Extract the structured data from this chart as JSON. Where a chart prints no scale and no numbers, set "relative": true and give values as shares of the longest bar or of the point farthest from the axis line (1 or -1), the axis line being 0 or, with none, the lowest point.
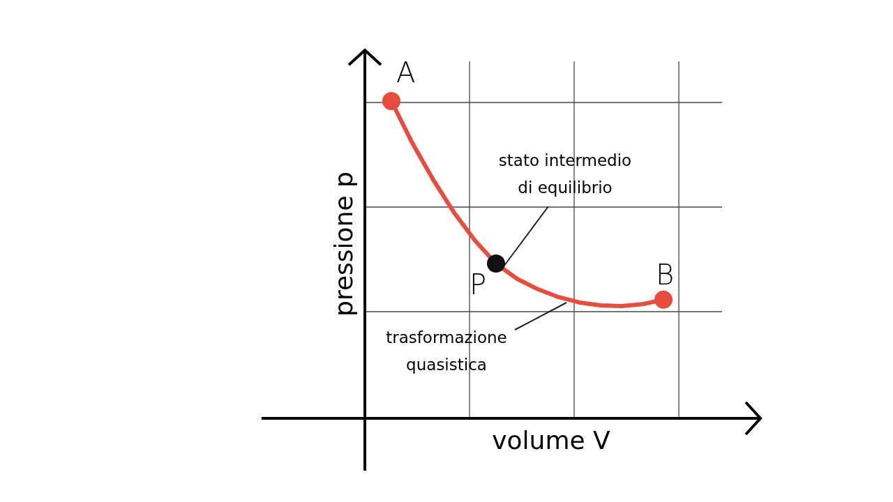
{
  "chart_data": {
    "type": "line",
    "relative": true,
    "xlabel": "volume V",
    "ylabel": "pressione p",
    "categories": [
      null,
      null,
      null,
      null,
      null,
      null,
      null,
      null,
      null,
      null,
      null,
      null,
      null,
      null
    ],
    "series": [
      {
        "color": "#e84c3d",
        "values": [
          1,
          0.868,
          0.752,
          0.648,
          0.56,
          0.488,
          0.44,
          0.407,
          0.382,
          0.365,
          0.356,
          0.354,
          0.36,
          0.374
        ],
        "colors": [
          "#e84c3d",
          null,
          null,
          null,
          null,
          "#111111",
          null,
          null,
          null,
          null,
          null,
          null,
          null,
          "#e84c3d"
        ]
      }
    ],
    "annotations": [
      "A",
      "B",
      "P",
      "stato intermedio\ndi equilibrio",
      "trasformazione\nquasistica"
    ]
  }
}
